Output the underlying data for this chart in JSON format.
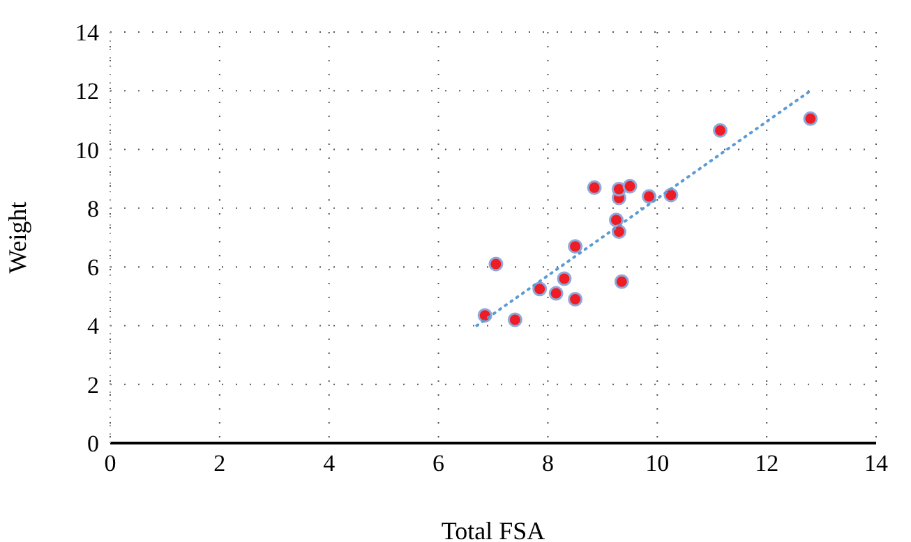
{
  "chart_data": {
    "type": "scatter",
    "xlabel": "Total FSA",
    "ylabel": "Weight",
    "xlim": [
      0,
      14
    ],
    "xticks": [
      0,
      2,
      4,
      6,
      8,
      10,
      12,
      14
    ],
    "ylim": [
      0,
      14
    ],
    "yticks": [
      0,
      2,
      4,
      6,
      8,
      10,
      12,
      14
    ],
    "grid": true,
    "series": [
      {
        "marker": "circle",
        "color": "#ee1c25",
        "x": [
          6.85,
          7.4,
          7.05,
          7.85,
          8.15,
          8.3,
          8.5,
          8.5,
          8.85,
          9.25,
          9.3,
          9.3,
          9.3,
          9.35,
          9.5,
          9.85,
          10.25,
          11.15,
          12.8
        ],
        "values": [
          4.35,
          4.2,
          6.1,
          5.25,
          5.1,
          5.6,
          4.9,
          6.7,
          8.7,
          7.6,
          7.2,
          8.35,
          8.65,
          5.5,
          8.75,
          8.4,
          8.45,
          10.65,
          11.05
        ]
      },
      {
        "type": "line",
        "marker": "none",
        "color": "#5b9bd5",
        "line_style": "dotted",
        "x": [
          6.7,
          12.8
        ],
        "values": [
          4.0,
          12.0
        ]
      }
    ]
  }
}
